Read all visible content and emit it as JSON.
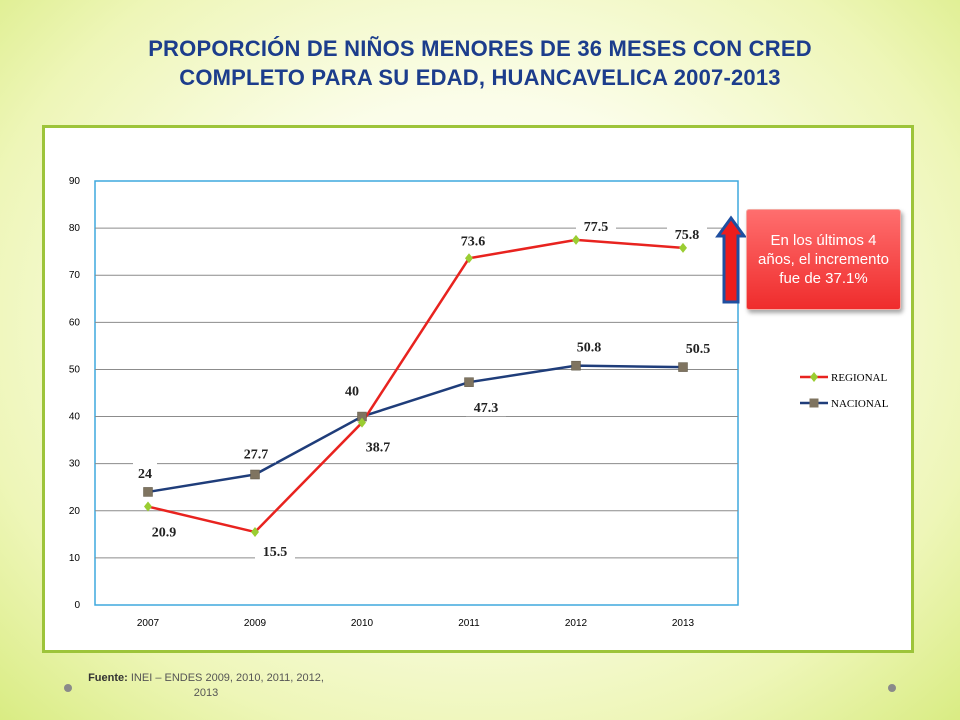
{
  "title_line1": "PROPORCIÓN DE NIÑOS MENORES DE 36 MESES CON CRED",
  "title_line2": "COMPLETO PARA SU EDAD, HUANCAVELICA  2007-2013",
  "callout_text": "En los últimos 4 años,  el incremento fue de 37.1%",
  "source_label": "Fuente:",
  "source_text": "INEI – ENDES  2009, 2010, 2011, 2012, 2013",
  "colors": {
    "regional": "#e8231f",
    "nacional": "#1f3d7a",
    "regional_marker": "#9acd32",
    "nacional_marker": "#7f7460",
    "title": "#1c3d8c",
    "frame": "#9dc43a",
    "plot_border": "#3fa9de"
  },
  "chart_data": {
    "type": "line",
    "categories": [
      "2007",
      "2009",
      "2010",
      "2011",
      "2012",
      "2013"
    ],
    "series": [
      {
        "name": "REGIONAL",
        "values": [
          20.9,
          15.5,
          38.7,
          73.6,
          77.5,
          75.8
        ],
        "labels": [
          "20.9",
          "15.5",
          "38.7",
          "73.6",
          "77.5",
          "75.8"
        ]
      },
      {
        "name": "NACIONAL",
        "values": [
          24,
          27.7,
          40,
          47.3,
          50.8,
          50.5
        ],
        "labels": [
          "24",
          "27.7",
          "40",
          "47.3",
          "50.8",
          "50.5"
        ]
      }
    ],
    "ylim": [
      0,
      90
    ],
    "yticks": [
      "0",
      "10",
      "20",
      "30",
      "40",
      "50",
      "60",
      "70",
      "80",
      "90"
    ],
    "grid": true,
    "legend": "right"
  }
}
